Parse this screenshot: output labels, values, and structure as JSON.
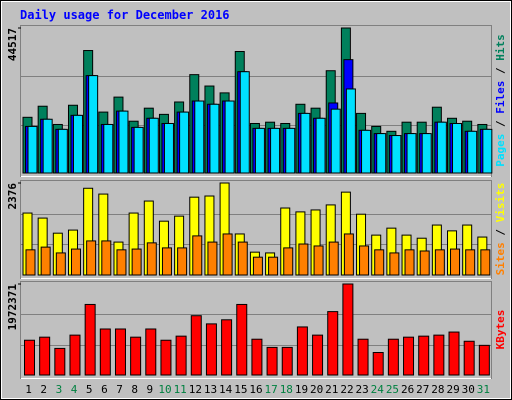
{
  "chart_data": [
    {
      "type": "bar",
      "title": "Daily usage for December 2016",
      "categories": [
        "1",
        "2",
        "3",
        "4",
        "5",
        "6",
        "7",
        "8",
        "9",
        "10",
        "11",
        "12",
        "13",
        "14",
        "15",
        "16",
        "17",
        "18",
        "19",
        "20",
        "21",
        "22",
        "23",
        "24",
        "25",
        "26",
        "27",
        "28",
        "29",
        "30",
        "31"
      ],
      "weekend_indices": [
        2,
        3,
        9,
        10,
        16,
        17,
        23,
        24,
        30
      ],
      "weekend_color": "#008040",
      "legend_separator": " / ",
      "ylim": [
        0,
        44517
      ],
      "yticks": [
        44517
      ],
      "series": [
        {
          "name": "Hits",
          "color": "#00805c",
          "values": [
            17100,
            20500,
            14900,
            20800,
            37600,
            18700,
            23300,
            15900,
            19900,
            18000,
            21800,
            30200,
            26700,
            24600,
            37300,
            15200,
            15600,
            15200,
            21100,
            19900,
            31400,
            44517,
            18300,
            14300,
            12800,
            15600,
            15600,
            20200,
            16800,
            15900,
            14900
          ]
        },
        {
          "name": "Files",
          "color": "#0000ff",
          "values": [
            14300,
            16500,
            13400,
            17700,
            29900,
            14900,
            19000,
            14000,
            16800,
            15200,
            18700,
            22100,
            21100,
            22100,
            31100,
            13700,
            13700,
            13700,
            18300,
            16800,
            21500,
            34800,
            13100,
            12100,
            11500,
            12100,
            12100,
            15600,
            15200,
            12800,
            13400
          ]
        },
        {
          "name": "Pages",
          "color": "#00e0ff",
          "values": [
            14300,
            16500,
            13400,
            17700,
            29900,
            14900,
            19000,
            14000,
            16800,
            15200,
            18700,
            22100,
            21100,
            22100,
            31100,
            13700,
            13700,
            13700,
            18300,
            16800,
            19600,
            25800,
            13100,
            12100,
            11500,
            12100,
            12100,
            15600,
            15200,
            12800,
            13400
          ]
        }
      ]
    },
    {
      "type": "bar",
      "legend_separator": " / ",
      "ylim": [
        0,
        2376
      ],
      "yticks": [
        2376
      ],
      "series": [
        {
          "name": "Visits",
          "color": "#ffff00",
          "values": [
            1600,
            1470,
            1080,
            1160,
            2240,
            2090,
            850,
            1600,
            1910,
            1390,
            1520,
            2010,
            2040,
            2376,
            1060,
            590,
            570,
            1730,
            1630,
            1680,
            1810,
            2140,
            1570,
            1030,
            1210,
            1030,
            950,
            1290,
            1140,
            1290,
            980
          ]
        },
        {
          "name": "Sites",
          "color": "#ff8000",
          "values": [
            650,
            720,
            570,
            670,
            880,
            880,
            650,
            670,
            830,
            700,
            700,
            1010,
            850,
            1060,
            850,
            460,
            460,
            700,
            800,
            750,
            850,
            1060,
            750,
            650,
            570,
            650,
            620,
            650,
            670,
            650,
            650
          ]
        }
      ]
    },
    {
      "type": "bar",
      "ylim": [
        0,
        1972371
      ],
      "yticks": [
        1972371
      ],
      "series": [
        {
          "name": "KBytes",
          "color": "#ff0000",
          "values": [
            753500,
            820000,
            576200,
            864300,
            1529100,
            997200,
            997200,
            820000,
            997200,
            753500,
            842100,
            1285300,
            1108100,
            1196700,
            1529100,
            775600,
            598300,
            598300,
            1041600,
            864300,
            1374000,
            1972371,
            775600,
            487500,
            775600,
            820000,
            842100,
            864300,
            930800,
            731300,
            642700
          ]
        }
      ]
    }
  ]
}
